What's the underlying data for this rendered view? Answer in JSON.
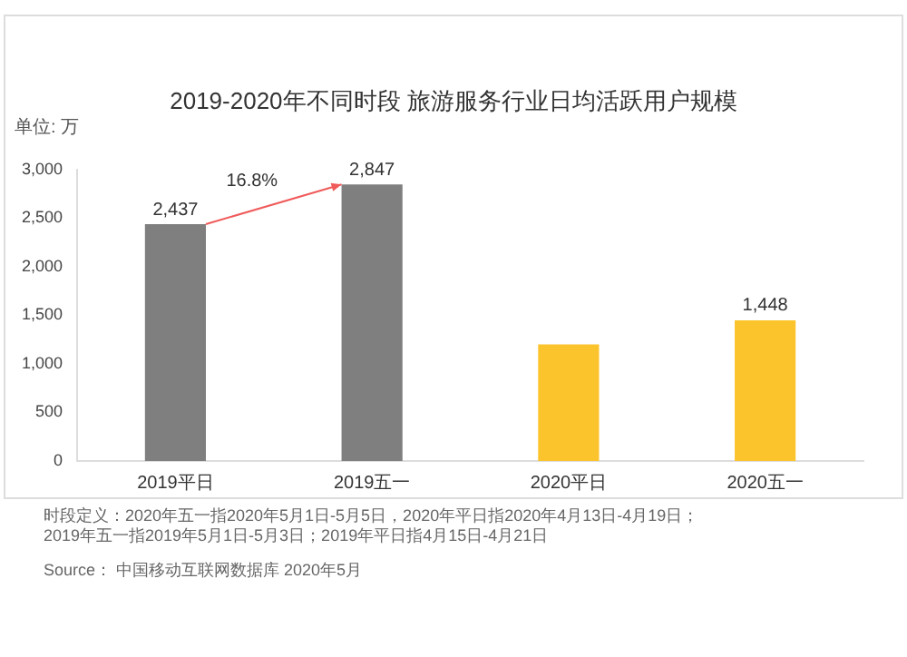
{
  "chart_data": {
    "type": "bar",
    "title": "2019-2020年不同时段 旅游服务行业日均活跃用户规模",
    "ylabel": "单位: 万",
    "categories": [
      "2019平日",
      "2019五一",
      "2020平日",
      "2020五一"
    ],
    "values": [
      2437,
      2847,
      1200,
      1448
    ],
    "colors": [
      "#7f7f7f",
      "#7f7f7f",
      "#fcc42c",
      "#fcc42c"
    ],
    "value_labels": [
      "2,437",
      "2,847",
      null,
      "1,448"
    ],
    "ylim": [
      0,
      3000
    ],
    "yticks": [
      {
        "value": 0,
        "label": "0"
      },
      {
        "value": 500,
        "label": "500"
      },
      {
        "value": 1000,
        "label": "1,000"
      },
      {
        "value": 1500,
        "label": "1,500"
      },
      {
        "value": 2000,
        "label": "2,000"
      },
      {
        "value": 2500,
        "label": "2,500"
      },
      {
        "value": 3000,
        "label": "3,000"
      }
    ],
    "grid": false,
    "annotations": [
      "16.8%",
      "时段定义：2020年五一指2020年5月1日-5月5日，2020年平日指2020年4月13日-4月19日；",
      "2019年五一指2019年5月1日-5月3日；2019年平日指4月15日-4月21日",
      "Source： 中国移动互联网数据库 2020年5月"
    ]
  }
}
